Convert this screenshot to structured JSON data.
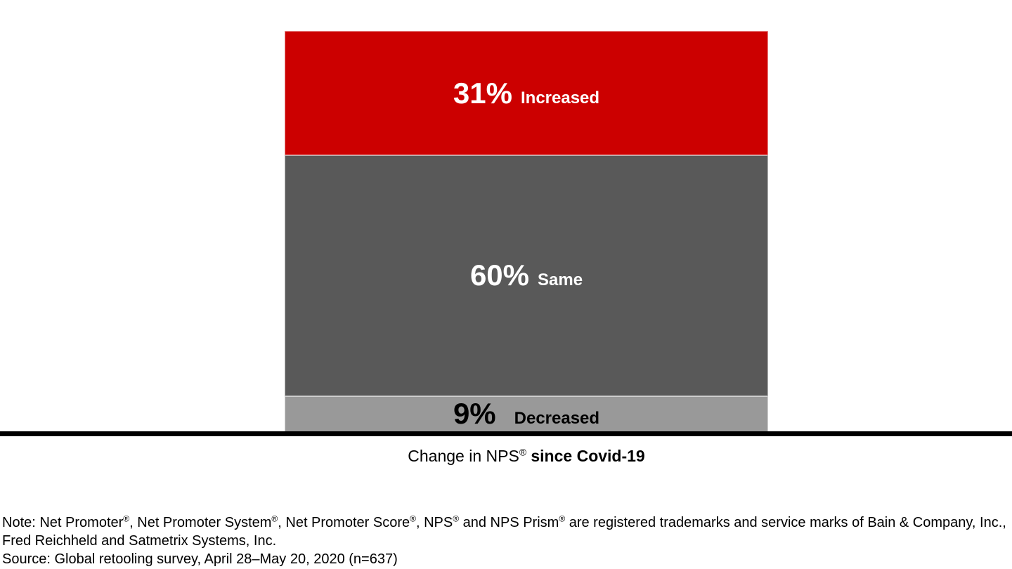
{
  "page": {
    "background": "#ffffff",
    "axis_color": "#000000"
  },
  "chart_data": {
    "type": "bar",
    "stacked": true,
    "orientation": "vertical",
    "category": "Change in NPS® since Covid-19",
    "ylim": [
      0,
      100
    ],
    "unit": "%",
    "grid": false,
    "legend": "none (labels inside segments)",
    "segments": [
      {
        "label": "Increased",
        "value": 31,
        "display_value": "31%",
        "fill": "#cc0000",
        "text_color": "#ffffff"
      },
      {
        "label": "Same",
        "value": 60,
        "display_value": "60%",
        "fill": "#595959",
        "text_color": "#ffffff"
      },
      {
        "label": "Decreased",
        "value": 9,
        "display_value": "9%",
        "fill": "#999999",
        "text_color": "#000000"
      }
    ]
  },
  "axis_label_parts": [
    {
      "text": "Change in NPS"
    },
    {
      "text": "®",
      "sup": true
    },
    {
      "text": " since Covid-19",
      "bold": true
    }
  ],
  "footnotes": {
    "note_line_1_parts": [
      {
        "text": "Note: Net Promoter"
      },
      {
        "text": "®",
        "sup": true
      },
      {
        "text": ", Net Promoter System"
      },
      {
        "text": "®",
        "sup": true
      },
      {
        "text": ", Net Promoter Score"
      },
      {
        "text": "®",
        "sup": true
      },
      {
        "text": ", NPS"
      },
      {
        "text": "®",
        "sup": true
      },
      {
        "text": " and NPS Prism"
      },
      {
        "text": "®",
        "sup": true
      },
      {
        "text": " are registered trademarks and service marks of Bain & Company, Inc.,"
      }
    ],
    "note_line_2": "Fred Reichheld and Satmetrix Systems, Inc.",
    "source_line": "Source: Global retooling survey, April 28–May 20, 2020 (n=637)"
  }
}
